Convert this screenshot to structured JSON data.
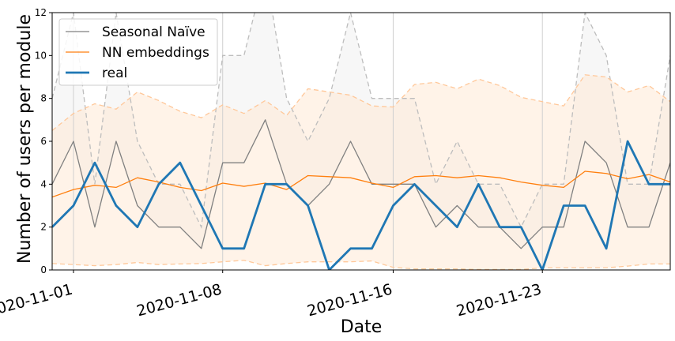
{
  "chart_data": {
    "type": "line",
    "xlabel": "Date",
    "ylabel": "Number of users per module",
    "ylim": [
      0,
      12
    ],
    "yticks": [
      0,
      2,
      4,
      6,
      8,
      10,
      12
    ],
    "xlim": [
      "2020-10-31",
      "2020-11-29"
    ],
    "xticks": [
      "2020-11-01",
      "2020-11-08",
      "2020-11-16",
      "2020-11-23"
    ],
    "grid": "vertical lines at x ticks",
    "legend_position": "top-left",
    "x": [
      "2020-10-31",
      "2020-11-01",
      "2020-11-02",
      "2020-11-03",
      "2020-11-04",
      "2020-11-05",
      "2020-11-06",
      "2020-11-07",
      "2020-11-08",
      "2020-11-09",
      "2020-11-10",
      "2020-11-11",
      "2020-11-12",
      "2020-11-13",
      "2020-11-14",
      "2020-11-15",
      "2020-11-16",
      "2020-11-17",
      "2020-11-18",
      "2020-11-19",
      "2020-11-20",
      "2020-11-21",
      "2020-11-22",
      "2020-11-23",
      "2020-11-24",
      "2020-11-25",
      "2020-11-26",
      "2020-11-27",
      "2020-11-28",
      "2020-11-29"
    ],
    "series": [
      {
        "name": "Seasonal Naïve",
        "color": "#808080",
        "values": [
          4,
          6,
          2,
          6,
          3,
          2,
          2,
          1,
          5,
          5,
          7,
          4,
          3,
          4,
          6,
          4,
          4,
          4,
          2,
          3,
          2,
          2,
          1,
          2,
          2,
          6,
          5,
          2,
          2,
          5
        ],
        "interval_lower": [
          8,
          12,
          4,
          12,
          6,
          4,
          4,
          2,
          10,
          10,
          14,
          8,
          6,
          8,
          12,
          8,
          8,
          8,
          4,
          6,
          4,
          4,
          2,
          4,
          4,
          12,
          10,
          4,
          4,
          10
        ],
        "interval_upper": [
          8,
          12,
          4,
          12,
          6,
          4,
          4,
          2,
          10,
          10,
          14,
          8,
          6,
          8,
          12,
          8,
          8,
          8,
          4,
          6,
          4,
          4,
          2,
          4,
          4,
          12,
          10,
          4,
          4,
          10
        ],
        "interval_color": "#f7f7f7"
      },
      {
        "name": "NN embeddings",
        "color": "#ff7f0e",
        "values": [
          3.4,
          3.75,
          3.95,
          3.85,
          4.3,
          4.1,
          3.85,
          3.7,
          4.05,
          3.9,
          4.05,
          3.75,
          4.4,
          4.35,
          4.3,
          4.05,
          3.85,
          4.35,
          4.4,
          4.3,
          4.4,
          4.3,
          4.1,
          3.95,
          3.85,
          4.6,
          4.5,
          4.25,
          4.45,
          4.1
        ],
        "interval_lower": [
          0.3,
          0.25,
          0.2,
          0.25,
          0.35,
          0.25,
          0.28,
          0.3,
          0.38,
          0.45,
          0.2,
          0.3,
          0.38,
          0.38,
          0.38,
          0.42,
          0.12,
          0.05,
          0.05,
          0.05,
          0.02,
          0.02,
          0.02,
          0.1,
          0.1,
          0.1,
          0.1,
          0.18,
          0.28,
          0.28
        ],
        "interval_upper": [
          6.5,
          7.3,
          7.75,
          7.5,
          8.3,
          7.9,
          7.4,
          7.1,
          7.7,
          7.3,
          7.9,
          7.2,
          8.45,
          8.3,
          8.15,
          7.65,
          7.6,
          8.65,
          8.75,
          8.45,
          8.9,
          8.6,
          8.05,
          7.85,
          7.65,
          9.1,
          9.0,
          8.3,
          8.6,
          7.85
        ],
        "interval_color": "#ffe9d6"
      },
      {
        "name": "real",
        "color": "#1f77b4",
        "values": [
          2,
          3,
          5,
          3,
          2,
          4,
          5,
          3,
          1,
          1,
          4,
          4,
          3,
          0,
          1,
          1,
          3,
          4,
          3,
          2,
          4,
          2,
          2,
          0,
          3,
          3,
          1,
          6,
          4,
          4
        ]
      }
    ]
  }
}
